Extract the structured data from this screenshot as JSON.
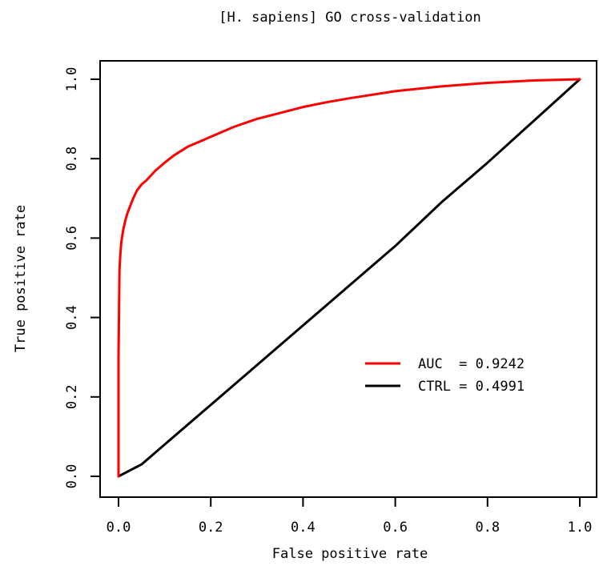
{
  "chart_data": {
    "type": "line",
    "title": "[H. sapiens] GO cross-validation",
    "xlabel": "False positive rate",
    "ylabel": "True positive rate",
    "xlim": [
      0,
      1
    ],
    "ylim": [
      0,
      1
    ],
    "xticks": [
      0.0,
      0.2,
      0.4,
      0.6,
      0.8,
      1.0
    ],
    "xtick_labels": [
      "0.0",
      "0.2",
      "0.4",
      "0.6",
      "0.8",
      "1.0"
    ],
    "yticks": [
      0.0,
      0.2,
      0.4,
      0.6,
      0.8,
      1.0
    ],
    "ytick_labels": [
      "0.0",
      "0.2",
      "0.4",
      "0.6",
      "0.8",
      "1.0"
    ],
    "grid": false,
    "legend_position": "right-center",
    "series": [
      {
        "name": "AUC  = 0.9242",
        "color": "#ff0000",
        "x": [
          0.0,
          0.0,
          0.002,
          0.004,
          0.006,
          0.01,
          0.015,
          0.02,
          0.03,
          0.04,
          0.05,
          0.06,
          0.08,
          0.1,
          0.12,
          0.15,
          0.18,
          0.2,
          0.25,
          0.3,
          0.35,
          0.4,
          0.45,
          0.5,
          0.6,
          0.7,
          0.8,
          0.9,
          1.0
        ],
        "y": [
          0.0,
          0.3,
          0.52,
          0.56,
          0.59,
          0.62,
          0.645,
          0.665,
          0.695,
          0.72,
          0.735,
          0.745,
          0.77,
          0.79,
          0.808,
          0.83,
          0.845,
          0.855,
          0.88,
          0.9,
          0.915,
          0.93,
          0.942,
          0.952,
          0.97,
          0.982,
          0.991,
          0.997,
          1.0
        ]
      },
      {
        "name": "CTRL = 0.4991",
        "color": "#000000",
        "x": [
          0.0,
          0.05,
          0.1,
          0.2,
          0.3,
          0.4,
          0.5,
          0.6,
          0.7,
          0.8,
          0.9,
          1.0
        ],
        "y": [
          0.0,
          0.03,
          0.08,
          0.18,
          0.28,
          0.38,
          0.48,
          0.58,
          0.69,
          0.79,
          0.895,
          1.0
        ]
      }
    ]
  }
}
